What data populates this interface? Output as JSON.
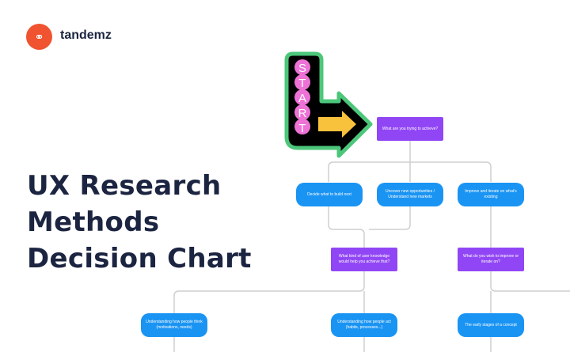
{
  "brand": {
    "name": "tandemz",
    "logo_color": "#f0532f",
    "icon": "tandem-bike-icon"
  },
  "title": {
    "lines": [
      "UX Research",
      "Methods",
      "Decision Chart"
    ]
  },
  "start_sign": {
    "letters": [
      "S",
      "T",
      "A",
      "R",
      "T"
    ],
    "colors": {
      "outline": "#4cc77a",
      "body": "#000000",
      "bulbs": "#ee72d6",
      "arrow": "#f9c23c"
    }
  },
  "colors": {
    "question": "#9146f5",
    "answer": "#1a94f3",
    "connector": "#cfcfcf",
    "title": "#1b2440"
  },
  "nodes": {
    "q1": "What are you trying to achieve?",
    "a1": "Decide what to build next",
    "a2": "Uncover new opportunities / Understand new markets",
    "a3": "Improve and iterate on what's existing",
    "q2": "What kind of user knowledge would help you achieve that?",
    "q3": "What do you wish to improve or iterate on?",
    "a4": "Understanding how people think (motivations, needs)",
    "a5": "Understanding how people act (habits, processes...)",
    "a6": "The early stages of a concept"
  }
}
